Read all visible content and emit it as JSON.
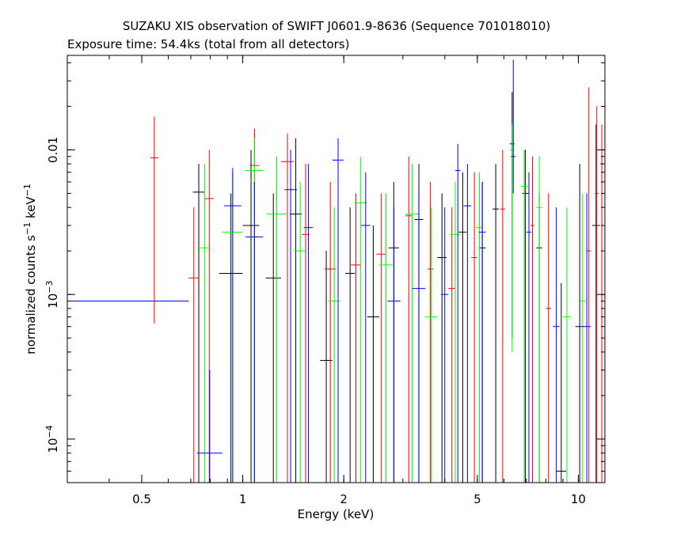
{
  "chart_data": {
    "type": "scatter",
    "title": "SUZAKU XIS observation of SWIFT J0601.9-8636 (Sequence 701018010)",
    "subtitle": "Exposure time: 54.4ks (total from all detectors)",
    "xlabel": "Energy (keV)",
    "ylabel": "normalized counts s^-1 keV^-1",
    "xscale": "log",
    "yscale": "log",
    "xlim": [
      0.3,
      12.0
    ],
    "ylim": [
      5e-05,
      0.045
    ],
    "xticks": [
      {
        "value": 0.5,
        "label": "0.5"
      },
      {
        "value": 1,
        "label": "1"
      },
      {
        "value": 2,
        "label": "2"
      },
      {
        "value": 5,
        "label": "5"
      },
      {
        "value": 10,
        "label": "10"
      }
    ],
    "yticks": [
      {
        "value": 0.0001,
        "base": "10",
        "exp": "−4"
      },
      {
        "value": 0.001,
        "base": "10",
        "exp": "−3"
      },
      {
        "value": 0.01,
        "base": "0.01",
        "exp": ""
      }
    ],
    "ylabel_parts": [
      "normalized counts s",
      "−1",
      " keV",
      "−1"
    ],
    "grid": false,
    "series": [
      {
        "color": "#000000",
        "points": [
          [
            0.71,
            0.77,
            0.0051,
            0.008,
            5e-05
          ],
          [
            0.85,
            1.0,
            0.0014,
            0.005,
            5e-05
          ],
          [
            1.0,
            1.12,
            0.003,
            0.01,
            5e-05
          ],
          [
            1.17,
            1.3,
            0.0013,
            0.005,
            5e-05
          ],
          [
            1.38,
            1.5,
            0.0036,
            0.012,
            5e-05
          ],
          [
            1.7,
            1.85,
            0.00035,
            0.002,
            5e-05
          ],
          [
            2.02,
            2.16,
            0.0014,
            0.004,
            5e-05
          ],
          [
            2.35,
            2.55,
            0.0007,
            0.003,
            5e-05
          ],
          [
            2.72,
            2.92,
            0.0021,
            0.006,
            5e-05
          ],
          [
            3.25,
            3.45,
            0.0033,
            0.008,
            5e-05
          ],
          [
            3.8,
            4.05,
            0.0018,
            0.005,
            5e-05
          ],
          [
            4.4,
            4.65,
            0.0027,
            0.007,
            5e-05
          ],
          [
            5.05,
            5.3,
            0.0021,
            0.006,
            5e-05
          ],
          [
            5.55,
            5.8,
            0.0039,
            0.008,
            5e-05
          ],
          [
            6.25,
            6.45,
            0.011,
            0.025,
            0.0005
          ],
          [
            6.8,
            7.1,
            0.005,
            0.01,
            5e-05
          ],
          [
            7.5,
            7.8,
            0.0021,
            0.005,
            5e-05
          ],
          [
            8.6,
            9.2,
            6e-05,
            0.0012,
            5e-05
          ],
          [
            9.8,
            10.4,
            0.0006,
            0.008,
            5e-05
          ],
          [
            11.0,
            11.6,
            0.003,
            0.015,
            5e-05
          ]
        ]
      },
      {
        "color": "#ff0000",
        "points": [
          [
            0.53,
            0.56,
            0.0088,
            0.017,
            0.00063
          ],
          [
            0.69,
            0.74,
            0.0013,
            0.004,
            5e-05
          ],
          [
            0.77,
            0.82,
            0.0046,
            0.01,
            5e-05
          ],
          [
            1.05,
            1.12,
            0.0078,
            0.014,
            5e-05
          ],
          [
            1.3,
            1.42,
            0.0083,
            0.013,
            5e-05
          ],
          [
            1.5,
            1.58,
            0.0026,
            0.008,
            5e-05
          ],
          [
            1.75,
            1.9,
            0.0015,
            0.006,
            5e-05
          ],
          [
            2.1,
            2.25,
            0.0016,
            0.005,
            5e-05
          ],
          [
            2.5,
            2.68,
            0.0019,
            0.005,
            5e-05
          ],
          [
            3.05,
            3.2,
            0.0035,
            0.009,
            5e-05
          ],
          [
            3.55,
            3.7,
            0.0015,
            0.006,
            5e-05
          ],
          [
            4.1,
            4.3,
            0.0011,
            0.004,
            5e-05
          ],
          [
            4.8,
            5.0,
            0.0018,
            0.007,
            5e-05
          ],
          [
            5.85,
            6.05,
            0.0039,
            0.01,
            5e-05
          ],
          [
            7.2,
            7.4,
            0.003,
            0.009,
            5e-05
          ],
          [
            8.0,
            8.3,
            0.0008,
            0.005,
            5e-05
          ],
          [
            10.6,
            10.9,
            0.002,
            0.027,
            5e-05
          ],
          [
            11.2,
            11.5,
            0.005,
            0.02,
            5e-05
          ],
          [
            11.6,
            11.9,
            0.008,
            0.015,
            5e-05
          ]
        ]
      },
      {
        "color": "#00ff00",
        "points": [
          [
            0.74,
            0.8,
            0.0021,
            0.008,
            5e-05
          ],
          [
            0.87,
            1.0,
            0.0027,
            0.007,
            5e-05
          ],
          [
            1.02,
            1.15,
            0.0072,
            0.012,
            5e-05
          ],
          [
            1.18,
            1.35,
            0.0036,
            0.009,
            5e-05
          ],
          [
            1.42,
            1.55,
            0.002,
            0.006,
            5e-05
          ],
          [
            1.8,
            1.95,
            0.0009,
            0.004,
            5e-05
          ],
          [
            2.15,
            2.35,
            0.0043,
            0.009,
            5e-05
          ],
          [
            2.55,
            2.8,
            0.0016,
            0.005,
            5e-05
          ],
          [
            3.05,
            3.35,
            0.0036,
            0.008,
            5e-05
          ],
          [
            3.5,
            3.8,
            0.0007,
            0.004,
            5e-05
          ],
          [
            4.15,
            4.45,
            0.0026,
            0.006,
            5e-05
          ],
          [
            4.95,
            5.2,
            0.0029,
            0.007,
            5e-05
          ],
          [
            6.25,
            6.45,
            0.01,
            0.015,
            0.0004
          ],
          [
            6.75,
            7.05,
            0.0056,
            0.01,
            5e-05
          ],
          [
            7.5,
            7.8,
            0.004,
            0.009,
            5e-05
          ],
          [
            9.0,
            9.5,
            0.0007,
            0.004,
            5e-05
          ],
          [
            10.1,
            10.5,
            0.0009,
            0.005,
            5e-05
          ]
        ]
      },
      {
        "color": "#0000ff",
        "points": [
          [
            0.3,
            0.69,
            0.0009,
            0.0009,
            0.0009
          ],
          [
            0.73,
            0.87,
            8e-05,
            0.0003,
            5e-05
          ],
          [
            0.88,
            0.99,
            0.0041,
            0.0075,
            5e-05
          ],
          [
            1.02,
            1.15,
            0.0025,
            0.006,
            5e-05
          ],
          [
            1.33,
            1.45,
            0.0053,
            0.01,
            5e-05
          ],
          [
            1.52,
            1.62,
            0.0029,
            0.008,
            5e-05
          ],
          [
            1.85,
            2.0,
            0.0085,
            0.012,
            5e-05
          ],
          [
            2.25,
            2.4,
            0.003,
            0.007,
            5e-05
          ],
          [
            2.7,
            2.95,
            0.0009,
            0.004,
            5e-05
          ],
          [
            3.2,
            3.5,
            0.0011,
            0.005,
            5e-05
          ],
          [
            3.9,
            4.1,
            0.001,
            0.004,
            5e-05
          ],
          [
            4.3,
            4.45,
            0.0072,
            0.011,
            5e-05
          ],
          [
            4.55,
            4.8,
            0.0041,
            0.008,
            5e-05
          ],
          [
            5.05,
            5.3,
            0.0027,
            0.006,
            5e-05
          ],
          [
            6.3,
            6.5,
            0.009,
            0.042,
            0.005
          ],
          [
            7.0,
            7.25,
            0.0027,
            0.007,
            5e-05
          ],
          [
            8.4,
            8.8,
            0.0006,
            0.004,
            5e-05
          ],
          [
            10.3,
            10.9,
            0.0006,
            0.005,
            5e-05
          ]
        ]
      }
    ]
  }
}
